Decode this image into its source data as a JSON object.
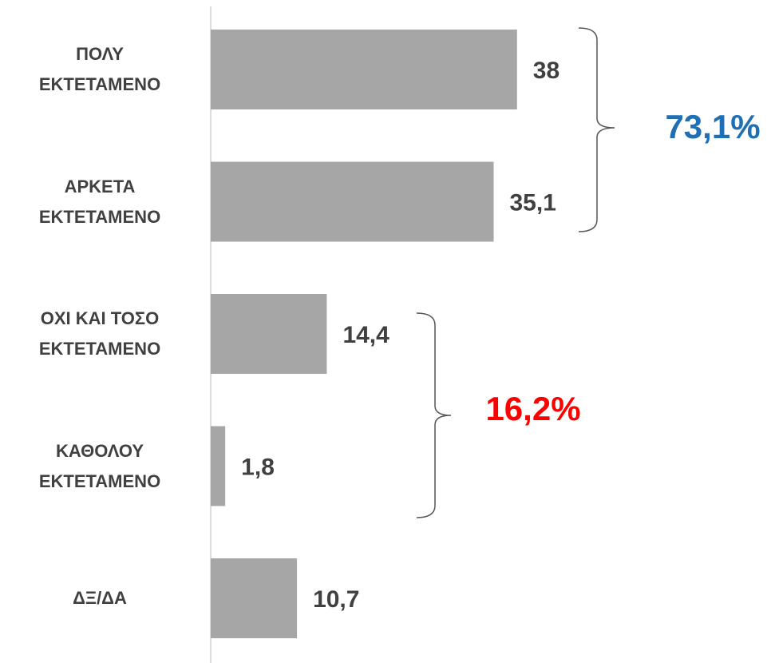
{
  "chart_data": {
    "type": "bar",
    "orientation": "horizontal",
    "categories": [
      "ΠΟΛΥ\nΕΚΤΕΤΑΜΕΝΟ",
      "ΑΡΚΕΤΑ\nΕΚΤΕΤΑΜΕΝΟ",
      "ΟΧΙ ΚΑΙ ΤΟΣΟ\nΕΚΤΕΤΑΜΕΝΟ",
      "ΚΑΘΟΛΟΥ\nΕΚΤΕΤΑΜΕΝΟ",
      "ΔΞ/ΔΑ"
    ],
    "values": [
      38,
      35.1,
      14.4,
      1.8,
      10.7
    ],
    "value_labels": [
      "38",
      "35,1",
      "14,4",
      "1,8",
      "10,7"
    ],
    "color": "#a6a6a6",
    "xlim": [
      0,
      40
    ],
    "annotations": [
      {
        "text": "73,1%",
        "color": "#1f6fb5"
      },
      {
        "text": "16,2%",
        "color": "#ff0000"
      }
    ]
  }
}
